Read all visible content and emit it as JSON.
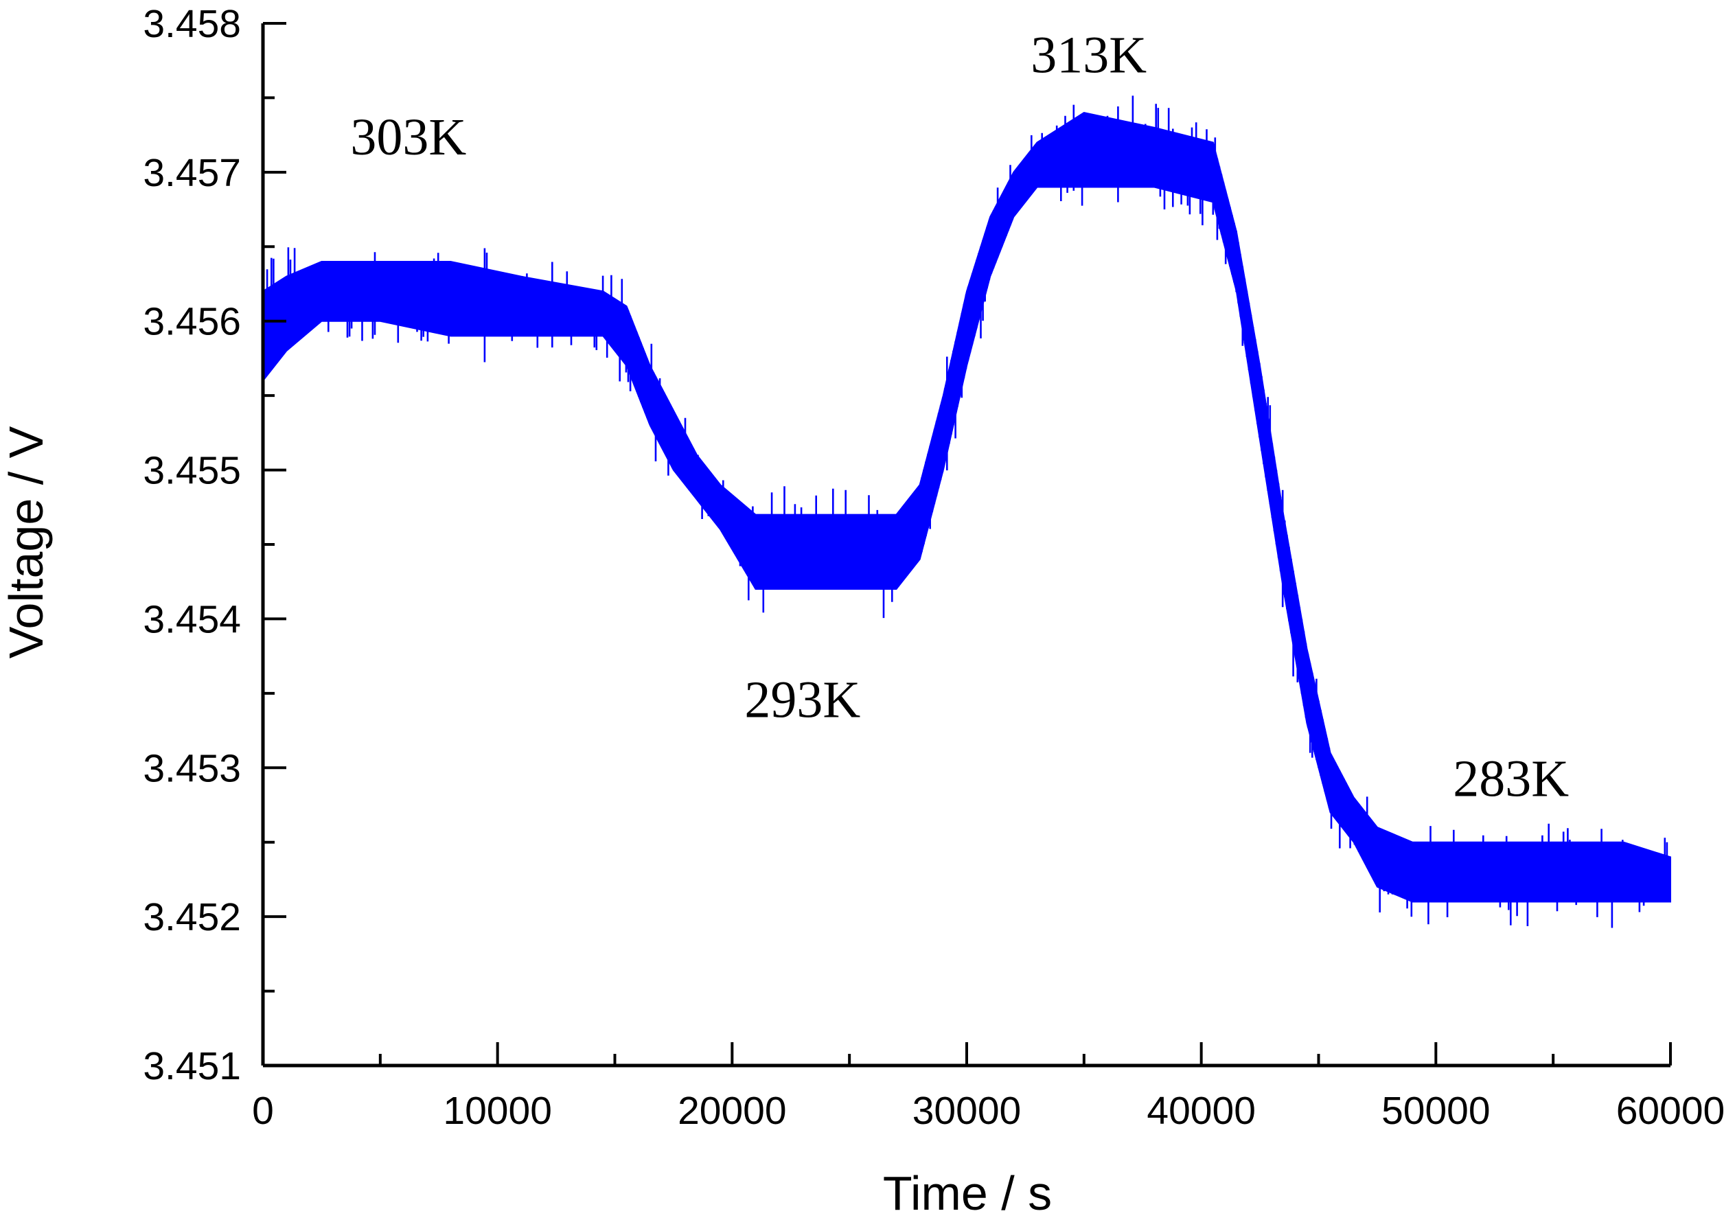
{
  "chart_data": {
    "type": "line",
    "title": "",
    "xlabel": "Time / s",
    "ylabel": "Voltage / V",
    "xlim": [
      0,
      60000
    ],
    "ylim": [
      3.451,
      3.458
    ],
    "x_ticks": [
      0,
      10000,
      20000,
      30000,
      40000,
      50000,
      60000
    ],
    "x_tick_labels": [
      "0",
      "10000",
      "20000",
      "30000",
      "40000",
      "50000",
      "60000"
    ],
    "x_minor_step": 5000,
    "y_ticks": [
      3.451,
      3.452,
      3.453,
      3.454,
      3.455,
      3.456,
      3.457,
      3.458
    ],
    "y_tick_labels": [
      "3.451",
      "3.452",
      "3.453",
      "3.454",
      "3.455",
      "3.456",
      "3.457",
      "3.458"
    ],
    "y_minor_step": 0.0005,
    "grid": false,
    "series": [
      {
        "name": "Voltage",
        "color": "#0000ff",
        "points": [
          {
            "x": 0,
            "min": 3.4556,
            "max": 3.4562
          },
          {
            "x": 1000,
            "min": 3.4558,
            "max": 3.4563
          },
          {
            "x": 2500,
            "min": 3.456,
            "max": 3.4564
          },
          {
            "x": 5000,
            "min": 3.456,
            "max": 3.4564
          },
          {
            "x": 8000,
            "min": 3.4559,
            "max": 3.4564
          },
          {
            "x": 11000,
            "min": 3.4559,
            "max": 3.4563
          },
          {
            "x": 14500,
            "min": 3.4559,
            "max": 3.4562
          },
          {
            "x": 15500,
            "min": 3.4557,
            "max": 3.4561
          },
          {
            "x": 16500,
            "min": 3.4553,
            "max": 3.4557
          },
          {
            "x": 17500,
            "min": 3.455,
            "max": 3.4554
          },
          {
            "x": 18500,
            "min": 3.4548,
            "max": 3.4551
          },
          {
            "x": 19500,
            "min": 3.4546,
            "max": 3.4549
          },
          {
            "x": 21000,
            "min": 3.4542,
            "max": 3.4547
          },
          {
            "x": 24000,
            "min": 3.4542,
            "max": 3.4547
          },
          {
            "x": 27000,
            "min": 3.4542,
            "max": 3.4547
          },
          {
            "x": 28000,
            "min": 3.4544,
            "max": 3.4549
          },
          {
            "x": 29000,
            "min": 3.455,
            "max": 3.4555
          },
          {
            "x": 30000,
            "min": 3.4557,
            "max": 3.4562
          },
          {
            "x": 31000,
            "min": 3.4563,
            "max": 3.4567
          },
          {
            "x": 32000,
            "min": 3.4567,
            "max": 3.457
          },
          {
            "x": 33000,
            "min": 3.4569,
            "max": 3.4572
          },
          {
            "x": 35000,
            "min": 3.4569,
            "max": 3.4574
          },
          {
            "x": 38000,
            "min": 3.4569,
            "max": 3.4573
          },
          {
            "x": 40500,
            "min": 3.4568,
            "max": 3.4572
          },
          {
            "x": 41500,
            "min": 3.4562,
            "max": 3.4566
          },
          {
            "x": 42500,
            "min": 3.4552,
            "max": 3.4557
          },
          {
            "x": 43500,
            "min": 3.4542,
            "max": 3.4547
          },
          {
            "x": 44500,
            "min": 3.4533,
            "max": 3.4538
          },
          {
            "x": 45500,
            "min": 3.4527,
            "max": 3.4531
          },
          {
            "x": 46500,
            "min": 3.4525,
            "max": 3.4528
          },
          {
            "x": 47500,
            "min": 3.4522,
            "max": 3.4526
          },
          {
            "x": 49000,
            "min": 3.4521,
            "max": 3.4525
          },
          {
            "x": 52000,
            "min": 3.4521,
            "max": 3.4525
          },
          {
            "x": 55000,
            "min": 3.4521,
            "max": 3.4525
          },
          {
            "x": 58000,
            "min": 3.4521,
            "max": 3.4525
          },
          {
            "x": 60000,
            "min": 3.4521,
            "max": 3.4524
          }
        ]
      }
    ],
    "annotations": [
      {
        "text": "303K",
        "x": 6200,
        "y": 3.45712
      },
      {
        "text": "293K",
        "x": 23000,
        "y": 3.45334
      },
      {
        "text": "313K",
        "x": 35200,
        "y": 3.45767
      },
      {
        "text": "283K",
        "x": 53200,
        "y": 3.45281
      }
    ]
  }
}
